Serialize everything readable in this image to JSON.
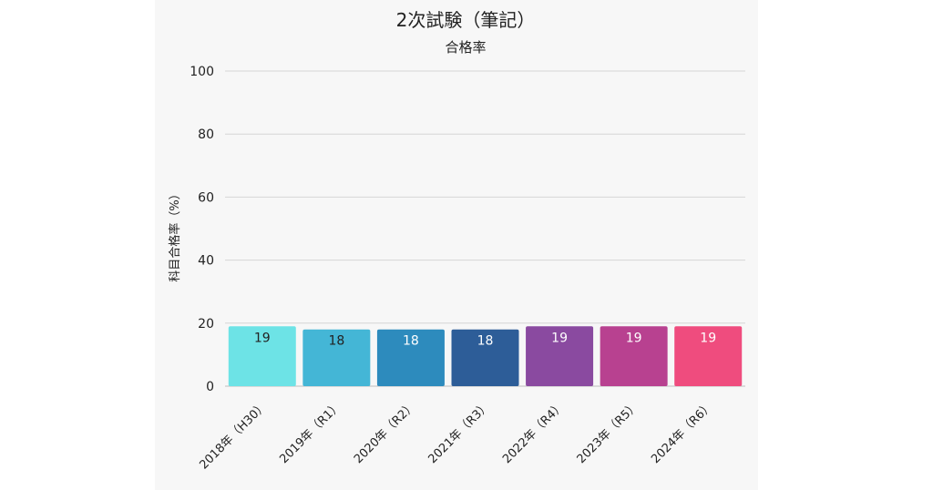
{
  "chart_data": {
    "type": "bar",
    "title": "2次試験（筆記）",
    "subtitle": "合格率",
    "ylabel": "科目合格率（%）",
    "xlabel": "",
    "ylim": [
      0,
      100
    ],
    "yticks": [
      0,
      20,
      40,
      60,
      80,
      100
    ],
    "grid": true,
    "categories": [
      "2018年（H30）",
      "2019年（R1）",
      "2020年（R2）",
      "2021年（R3）",
      "2022年（R4）",
      "2023年（R5）",
      "2024年（R6）"
    ],
    "values": [
      19,
      18,
      18,
      18,
      19,
      19,
      19
    ],
    "colors": [
      "#6de3e6",
      "#44b6d6",
      "#2d8bbd",
      "#2d5d98",
      "#8a4aa0",
      "#b84190",
      "#ef4c7e"
    ],
    "label_colors": [
      "#222222",
      "#222222",
      "#ffffff",
      "#ffffff",
      "#ffffff",
      "#ffffff",
      "#ffffff"
    ]
  }
}
